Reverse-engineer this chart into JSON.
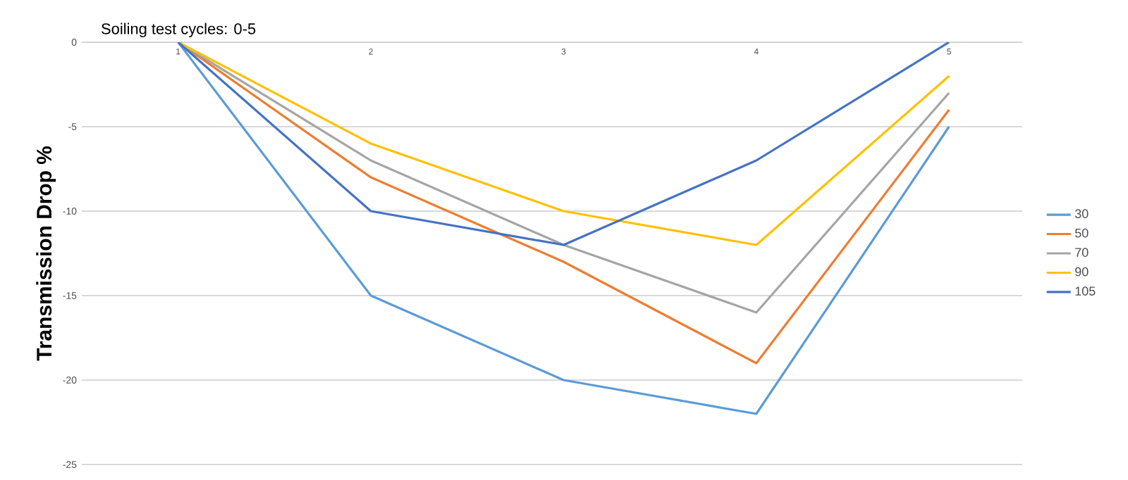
{
  "chart_data": {
    "type": "line",
    "title": "Soiling test cycles: 0-5",
    "ylabel": "Transmission Drop %",
    "categories": [
      "1",
      "2",
      "3",
      "4",
      "5"
    ],
    "series": [
      {
        "name": "30",
        "color": "#5b9bd5",
        "values": [
          0,
          -15,
          -20,
          -22,
          -5
        ]
      },
      {
        "name": "50",
        "color": "#ed7d31",
        "values": [
          0,
          -8,
          -13,
          -19,
          -4
        ]
      },
      {
        "name": "70",
        "color": "#a5a5a5",
        "values": [
          0,
          -7,
          -12,
          -16,
          -3
        ]
      },
      {
        "name": "90",
        "color": "#ffc000",
        "values": [
          0,
          -6,
          -10,
          -12,
          -2
        ]
      },
      {
        "name": "105",
        "color": "#4472c4",
        "values": [
          0,
          -10,
          -12,
          -7,
          0
        ]
      }
    ],
    "ylim": [
      -25,
      0
    ],
    "yticks": [
      -25,
      -20,
      -15,
      -10,
      -5,
      0
    ],
    "grid": "y",
    "legend": "right",
    "marker": "none",
    "line_style": "solid"
  }
}
